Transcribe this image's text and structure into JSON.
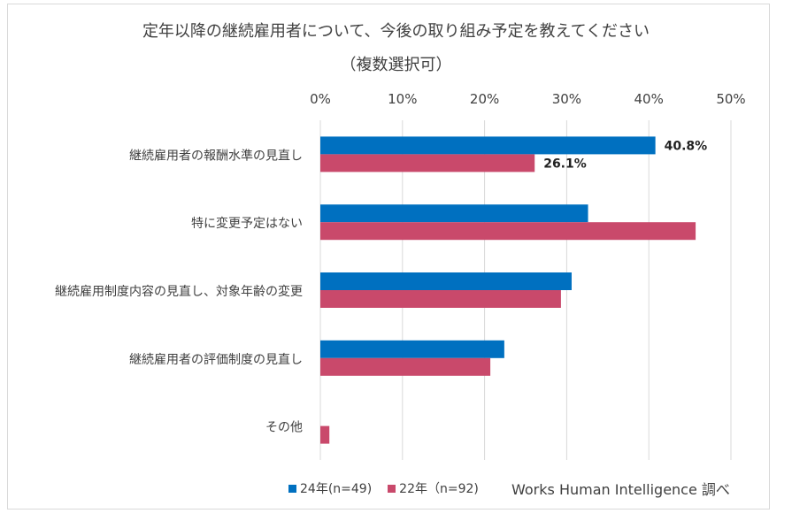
{
  "title": {
    "line1": "定年以降の継続雇用者について、今後の取り組み予定を教えてください",
    "line2": "（複数選択可）"
  },
  "source": "Works Human Intelligence 調べ",
  "colors": {
    "series_24": "#0070c0",
    "series_22": "#c9496b",
    "grid": "#d9d9d9"
  },
  "chart_data": {
    "type": "bar",
    "orientation": "horizontal",
    "categories": [
      "継続雇用者の報酬水準の見直し",
      "特に変更予定はない",
      "継続雇用制度内容の見直し、対象年齢の変更",
      "継続雇用者の評価制度の見直し",
      "その他"
    ],
    "series": [
      {
        "name": "24年(n=49)",
        "values": [
          40.8,
          32.6,
          30.6,
          22.4,
          0
        ]
      },
      {
        "name": "22年（n=92)",
        "values": [
          26.1,
          45.7,
          29.3,
          20.7,
          1.1
        ]
      }
    ],
    "data_labels": [
      {
        "series": 0,
        "category": 0,
        "text": "40.8%"
      },
      {
        "series": 1,
        "category": 0,
        "text": "26.1%"
      }
    ],
    "xlim": [
      0,
      50
    ],
    "ticks": [
      "0%",
      "10%",
      "20%",
      "30%",
      "40%",
      "50%"
    ],
    "tick_values": [
      0,
      10,
      20,
      30,
      40,
      50
    ],
    "axis_position": "top",
    "grid": true,
    "legend_position": "bottom"
  }
}
